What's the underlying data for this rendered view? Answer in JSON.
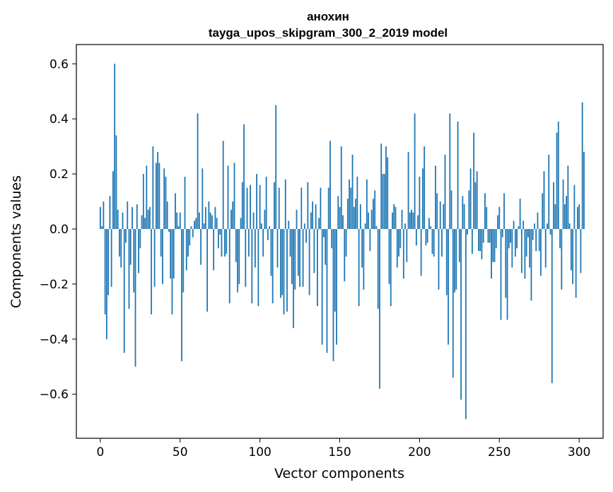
{
  "chart_data": {
    "type": "bar",
    "title": "анохин",
    "subtitle": "tayga_upos_skipgram_300_2_2019 model",
    "xlabel": "Vector components",
    "ylabel": "Components values",
    "xlim": [
      -15,
      315
    ],
    "ylim": [
      -0.76,
      0.67
    ],
    "xticks": [
      0,
      50,
      100,
      150,
      200,
      250,
      300
    ],
    "xtick_labels": [
      "0",
      "50",
      "100",
      "150",
      "200",
      "250",
      "300"
    ],
    "yticks": [
      -0.6,
      -0.4,
      -0.2,
      0.0,
      0.2,
      0.4,
      0.6
    ],
    "ytick_labels": [
      "−0.6",
      "−0.4",
      "−0.2",
      "0.0",
      "0.2",
      "0.4",
      "0.6"
    ],
    "color": "#1f77b4",
    "values": [
      0.08,
      0.01,
      0.1,
      -0.31,
      -0.4,
      -0.24,
      0.12,
      -0.21,
      0.21,
      0.6,
      0.34,
      0.07,
      -0.1,
      -0.14,
      0.06,
      -0.45,
      -0.05,
      0.1,
      -0.29,
      -0.13,
      0.08,
      -0.23,
      -0.5,
      0.09,
      -0.16,
      -0.07,
      0.05,
      0.2,
      0.04,
      0.23,
      0.07,
      0.08,
      -0.31,
      0.3,
      -0.21,
      0.24,
      0.28,
      0.24,
      -0.1,
      -0.2,
      0.22,
      0.19,
      0.1,
      -0.01,
      -0.18,
      -0.31,
      -0.18,
      0.13,
      0.06,
      0.01,
      0.06,
      -0.48,
      -0.23,
      0.19,
      -0.15,
      -0.1,
      -0.06,
      0.01,
      -0.03,
      0.03,
      0.04,
      0.42,
      0.06,
      -0.13,
      0.22,
      0.02,
      0.08,
      -0.3,
      0.1,
      0.06,
      0.05,
      -0.15,
      0.08,
      0.04,
      -0.07,
      -0.02,
      -0.1,
      0.32,
      -0.1,
      -0.09,
      0.23,
      -0.27,
      0.07,
      0.1,
      0.24,
      -0.12,
      -0.23,
      -0.2,
      0.04,
      0.17,
      0.38,
      -0.21,
      0.15,
      -0.1,
      0.16,
      -0.27,
      0.06,
      -0.14,
      0.2,
      -0.28,
      0.16,
      0.02,
      -0.1,
      0.07,
      0.19,
      -0.04,
      0.01,
      -0.17,
      -0.27,
      0.17,
      0.45,
      -0.14,
      0.15,
      -0.25,
      -0.24,
      -0.31,
      0.18,
      -0.3,
      0.03,
      -0.1,
      -0.2,
      -0.36,
      -0.22,
      0.07,
      -0.17,
      -0.21,
      0.15,
      -0.21,
      0.02,
      -0.05,
      0.17,
      -0.24,
      0.06,
      0.1,
      -0.16,
      0.09,
      -0.28,
      0.04,
      0.15,
      -0.42,
      -0.03,
      -0.13,
      -0.45,
      0.15,
      0.32,
      -0.07,
      -0.48,
      -0.3,
      -0.42,
      0.12,
      0.08,
      0.3,
      0.05,
      -0.19,
      -0.1,
      0.11,
      0.18,
      0.15,
      0.27,
      0.08,
      0.11,
      0.19,
      -0.28,
      0.09,
      -0.14,
      -0.22,
      0.02,
      0.18,
      0.06,
      -0.08,
      0.07,
      0.11,
      0.14,
      0.01,
      -0.29,
      -0.58,
      0.31,
      0.2,
      0.2,
      0.3,
      0.26,
      -0.2,
      -0.28,
      0.06,
      0.09,
      0.08,
      -0.14,
      -0.1,
      -0.07,
      0.07,
      -0.18,
      0.02,
      -0.12,
      0.28,
      0.06,
      0.07,
      0.06,
      0.42,
      -0.06,
      0.05,
      0.19,
      -0.17,
      0.22,
      0.3,
      -0.06,
      -0.05,
      0.04,
      0.01,
      -0.09,
      -0.1,
      0.23,
      0.13,
      -0.22,
      0.1,
      -0.1,
      0.09,
      0.27,
      -0.24,
      -0.42,
      0.42,
      0.14,
      -0.54,
      -0.23,
      -0.22,
      0.39,
      -0.12,
      -0.62,
      0.12,
      0.09,
      -0.69,
      -0.02,
      0.14,
      0.22,
      -0.09,
      0.35,
      0.17,
      0.21,
      -0.08,
      -0.08,
      -0.11,
      -0.05,
      0.13,
      0.08,
      -0.05,
      -0.05,
      -0.18,
      -0.12,
      -0.12,
      -0.07,
      0.05,
      0.08,
      -0.33,
      -0.03,
      0.13,
      -0.25,
      -0.33,
      -0.07,
      -0.05,
      -0.14,
      0.03,
      -0.1,
      -0.07,
      0.01,
      0.11,
      -0.16,
      0.03,
      -0.18,
      -0.1,
      -0.03,
      -0.14,
      -0.26,
      -0.04,
      0.02,
      -0.08,
      0.06,
      -0.08,
      -0.17,
      0.13,
      0.21,
      -0.14,
      0.02,
      0.27,
      -0.02,
      -0.56,
      0.17,
      0.09,
      0.35,
      0.39,
      -0.07,
      -0.22,
      0.18,
      0.09,
      0.12,
      0.23,
      0.02,
      -0.15,
      -0.2,
      0.16,
      -0.25,
      0.08,
      0.09,
      -0.16,
      0.46,
      0.28
    ]
  }
}
